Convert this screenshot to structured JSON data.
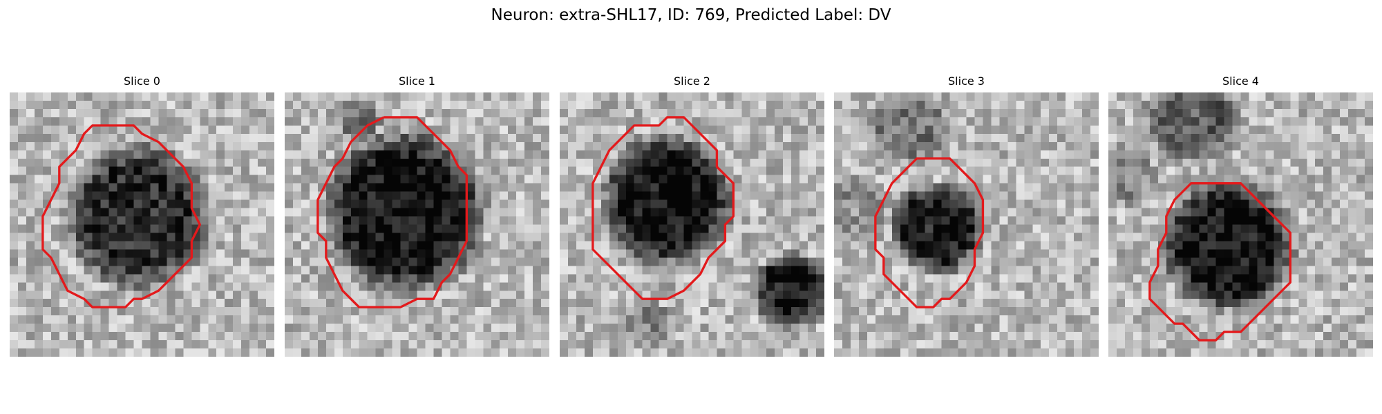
{
  "figure": {
    "title": "Neuron: extra-SHL17, ID: 769, Predicted Label: DV"
  },
  "contour_color": "#e31a1c",
  "slices": [
    {
      "label": "Slice 0",
      "contour": [
        [
          13,
          4
        ],
        [
          15,
          4
        ],
        [
          16,
          5
        ],
        [
          18,
          6
        ],
        [
          19,
          7
        ],
        [
          20,
          8
        ],
        [
          21,
          9
        ],
        [
          22,
          11
        ],
        [
          22,
          14
        ],
        [
          23,
          16
        ],
        [
          22,
          18
        ],
        [
          22,
          20
        ],
        [
          21,
          21
        ],
        [
          20,
          22
        ],
        [
          19,
          23
        ],
        [
          18,
          24
        ],
        [
          16,
          25
        ],
        [
          15,
          25
        ],
        [
          14,
          26
        ],
        [
          12,
          26
        ],
        [
          10,
          26
        ],
        [
          9,
          25
        ],
        [
          7,
          24
        ],
        [
          6,
          22
        ],
        [
          5,
          20
        ],
        [
          4,
          19
        ],
        [
          4,
          17
        ],
        [
          4,
          15
        ],
        [
          5,
          13
        ],
        [
          6,
          11
        ],
        [
          6,
          9
        ],
        [
          7,
          8
        ],
        [
          8,
          7
        ],
        [
          9,
          5
        ],
        [
          10,
          4
        ],
        [
          12,
          4
        ],
        [
          13,
          4
        ]
      ]
    },
    {
      "label": "Slice 1",
      "contour": [
        [
          12,
          3
        ],
        [
          16,
          3
        ],
        [
          17,
          4
        ],
        [
          18,
          5
        ],
        [
          20,
          7
        ],
        [
          21,
          9
        ],
        [
          22,
          10
        ],
        [
          22,
          13
        ],
        [
          22,
          16
        ],
        [
          22,
          18
        ],
        [
          21,
          20
        ],
        [
          20,
          22
        ],
        [
          19,
          23
        ],
        [
          18,
          25
        ],
        [
          16,
          25
        ],
        [
          14,
          26
        ],
        [
          12,
          26
        ],
        [
          9,
          26
        ],
        [
          8,
          25
        ],
        [
          7,
          24
        ],
        [
          6,
          22
        ],
        [
          5,
          20
        ],
        [
          5,
          18
        ],
        [
          4,
          17
        ],
        [
          4,
          15
        ],
        [
          4,
          13
        ],
        [
          5,
          11
        ],
        [
          6,
          9
        ],
        [
          7,
          8
        ],
        [
          8,
          6
        ],
        [
          9,
          5
        ],
        [
          10,
          4
        ],
        [
          12,
          3
        ]
      ]
    },
    {
      "label": "Slice 2",
      "contour": [
        [
          14,
          3
        ],
        [
          15,
          3
        ],
        [
          16,
          4
        ],
        [
          17,
          5
        ],
        [
          18,
          6
        ],
        [
          19,
          7
        ],
        [
          19,
          9
        ],
        [
          20,
          10
        ],
        [
          21,
          11
        ],
        [
          21,
          13
        ],
        [
          21,
          15
        ],
        [
          20,
          16
        ],
        [
          20,
          18
        ],
        [
          19,
          19
        ],
        [
          18,
          20
        ],
        [
          17,
          22
        ],
        [
          16,
          23
        ],
        [
          15,
          24
        ],
        [
          13,
          25
        ],
        [
          12,
          25
        ],
        [
          10,
          25
        ],
        [
          9,
          24
        ],
        [
          8,
          23
        ],
        [
          6,
          21
        ],
        [
          5,
          20
        ],
        [
          4,
          19
        ],
        [
          4,
          17
        ],
        [
          4,
          15
        ],
        [
          4,
          13
        ],
        [
          4,
          11
        ],
        [
          5,
          9
        ],
        [
          6,
          7
        ],
        [
          7,
          6
        ],
        [
          8,
          5
        ],
        [
          9,
          4
        ],
        [
          12,
          4
        ],
        [
          13,
          3
        ],
        [
          14,
          3
        ]
      ]
    },
    {
      "label": "Slice 3",
      "contour": [
        [
          12,
          8
        ],
        [
          14,
          8
        ],
        [
          15,
          9
        ],
        [
          16,
          10
        ],
        [
          17,
          11
        ],
        [
          18,
          13
        ],
        [
          18,
          15
        ],
        [
          18,
          17
        ],
        [
          17,
          19
        ],
        [
          17,
          21
        ],
        [
          16,
          23
        ],
        [
          15,
          24
        ],
        [
          14,
          25
        ],
        [
          13,
          25
        ],
        [
          12,
          26
        ],
        [
          10,
          26
        ],
        [
          9,
          25
        ],
        [
          8,
          24
        ],
        [
          7,
          23
        ],
        [
          6,
          22
        ],
        [
          6,
          20
        ],
        [
          5,
          19
        ],
        [
          5,
          17
        ],
        [
          5,
          15
        ],
        [
          6,
          13
        ],
        [
          7,
          11
        ],
        [
          8,
          10
        ],
        [
          9,
          9
        ],
        [
          10,
          8
        ],
        [
          12,
          8
        ]
      ]
    },
    {
      "label": "Slice 4",
      "contour": [
        [
          12,
          11
        ],
        [
          15,
          11
        ],
        [
          16,
          11
        ],
        [
          17,
          12
        ],
        [
          18,
          13
        ],
        [
          19,
          14
        ],
        [
          20,
          15
        ],
        [
          21,
          16
        ],
        [
          22,
          17
        ],
        [
          22,
          19
        ],
        [
          22,
          21
        ],
        [
          22,
          23
        ],
        [
          21,
          24
        ],
        [
          20,
          25
        ],
        [
          19,
          26
        ],
        [
          18,
          27
        ],
        [
          17,
          28
        ],
        [
          16,
          29
        ],
        [
          14,
          29
        ],
        [
          13,
          30
        ],
        [
          11,
          30
        ],
        [
          10,
          29
        ],
        [
          9,
          28
        ],
        [
          8,
          28
        ],
        [
          7,
          27
        ],
        [
          6,
          26
        ],
        [
          5,
          25
        ],
        [
          5,
          23
        ],
        [
          6,
          21
        ],
        [
          6,
          19
        ],
        [
          7,
          17
        ],
        [
          7,
          15
        ],
        [
          8,
          13
        ],
        [
          9,
          12
        ],
        [
          10,
          11
        ],
        [
          12,
          11
        ]
      ]
    }
  ]
}
